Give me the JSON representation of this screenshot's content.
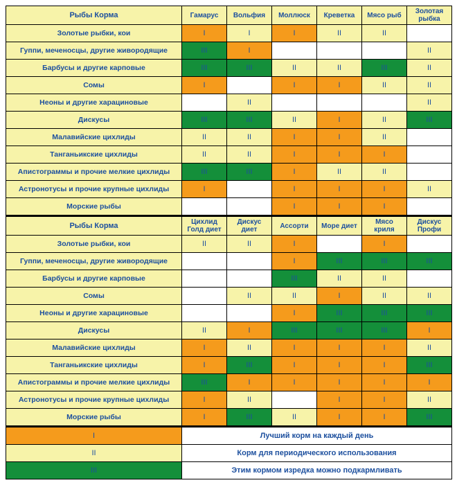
{
  "colors": {
    "orange": "#f59b1c",
    "yellow": "#f7f3a9",
    "green": "#148f3a",
    "white": "#ffffff",
    "text": "#1c4f9e",
    "border": "#000000"
  },
  "corner_label": "Рыбы     Корма",
  "tables": [
    {
      "foods": [
        "Гамарус",
        "Вольфия",
        "Моллюск",
        "Креветка",
        "Мясо рыб",
        "Золотая рыбка"
      ],
      "rows": [
        {
          "fish": "Золотые рыбки, кои",
          "cells": [
            [
              "I",
              "orange"
            ],
            [
              "I",
              "yellow"
            ],
            [
              "I",
              "orange"
            ],
            [
              "II",
              "yellow"
            ],
            [
              "II",
              "yellow"
            ],
            [
              "",
              "white"
            ]
          ]
        },
        {
          "fish": "Гуппи, меченосцы, другие живородящие",
          "cells": [
            [
              "III",
              "green"
            ],
            [
              "I",
              "orange"
            ],
            [
              "",
              "white"
            ],
            [
              "",
              "white"
            ],
            [
              "",
              "white"
            ],
            [
              "II",
              "yellow"
            ]
          ]
        },
        {
          "fish": "Барбусы  и другие карповые",
          "cells": [
            [
              "III",
              "green"
            ],
            [
              "III",
              "green"
            ],
            [
              "II",
              "yellow"
            ],
            [
              "II",
              "yellow"
            ],
            [
              "III",
              "green"
            ],
            [
              "II",
              "yellow"
            ]
          ]
        },
        {
          "fish": "Сомы",
          "cells": [
            [
              "I",
              "orange"
            ],
            [
              "",
              "white"
            ],
            [
              "I",
              "orange"
            ],
            [
              "I",
              "orange"
            ],
            [
              "II",
              "yellow"
            ],
            [
              "II",
              "yellow"
            ]
          ]
        },
        {
          "fish": "Неоны и другие харациновые",
          "cells": [
            [
              "",
              "white"
            ],
            [
              "II",
              "yellow"
            ],
            [
              "",
              "white"
            ],
            [
              "",
              "white"
            ],
            [
              "",
              "white"
            ],
            [
              "II",
              "yellow"
            ]
          ]
        },
        {
          "fish": "Дискусы",
          "cells": [
            [
              "III",
              "green"
            ],
            [
              "III",
              "green"
            ],
            [
              "II",
              "yellow"
            ],
            [
              "I",
              "orange"
            ],
            [
              "II",
              "yellow"
            ],
            [
              "III",
              "green"
            ]
          ]
        },
        {
          "fish": "Малавийские цихлиды",
          "cells": [
            [
              "II",
              "yellow"
            ],
            [
              "II",
              "yellow"
            ],
            [
              "I",
              "orange"
            ],
            [
              "I",
              "orange"
            ],
            [
              "II",
              "yellow"
            ],
            [
              "",
              "white"
            ]
          ]
        },
        {
          "fish": "Танганьикские цихлиды",
          "cells": [
            [
              "II",
              "yellow"
            ],
            [
              "II",
              "yellow"
            ],
            [
              "I",
              "orange"
            ],
            [
              "I",
              "orange"
            ],
            [
              "I",
              "orange"
            ],
            [
              "",
              "white"
            ]
          ]
        },
        {
          "fish": "Апистограммы и прочие мелкие цихлиды",
          "cells": [
            [
              "III",
              "green"
            ],
            [
              "III",
              "green"
            ],
            [
              "I",
              "orange"
            ],
            [
              "II",
              "yellow"
            ],
            [
              "II",
              "yellow"
            ],
            [
              "",
              "white"
            ]
          ]
        },
        {
          "fish": "Астронотусы и прочие крупные цихлиды",
          "cells": [
            [
              "I",
              "orange"
            ],
            [
              "",
              "white"
            ],
            [
              "I",
              "orange"
            ],
            [
              "I",
              "orange"
            ],
            [
              "I",
              "orange"
            ],
            [
              "II",
              "yellow"
            ]
          ]
        },
        {
          "fish": "Морские рыбы",
          "cells": [
            [
              "",
              "white"
            ],
            [
              "",
              "white"
            ],
            [
              "I",
              "orange"
            ],
            [
              "I",
              "orange"
            ],
            [
              "I",
              "orange"
            ],
            [
              "",
              "white"
            ]
          ]
        }
      ]
    },
    {
      "foods": [
        "Цихлид Голд диет",
        "Дискус диет",
        "Ассорти",
        "Море диет",
        "Мясо криля",
        "Дискус Профи"
      ],
      "rows": [
        {
          "fish": "Золотые рыбки, кои",
          "cells": [
            [
              "II",
              "yellow"
            ],
            [
              "II",
              "yellow"
            ],
            [
              "I",
              "orange"
            ],
            [
              "",
              "white"
            ],
            [
              "I",
              "orange"
            ],
            [
              "",
              "white"
            ]
          ]
        },
        {
          "fish": "Гуппи, меченосцы, другие живородящие",
          "cells": [
            [
              "",
              "white"
            ],
            [
              "",
              "white"
            ],
            [
              "I",
              "orange"
            ],
            [
              "III",
              "green"
            ],
            [
              "III",
              "green"
            ],
            [
              "III",
              "green"
            ]
          ]
        },
        {
          "fish": "Барбусы  и другие карповые",
          "cells": [
            [
              "",
              "white"
            ],
            [
              "",
              "white"
            ],
            [
              "III",
              "green"
            ],
            [
              "II",
              "yellow"
            ],
            [
              "II",
              "yellow"
            ],
            [
              "",
              "white"
            ]
          ]
        },
        {
          "fish": "Сомы",
          "cells": [
            [
              "",
              "white"
            ],
            [
              "II",
              "yellow"
            ],
            [
              "II",
              "yellow"
            ],
            [
              "I",
              "orange"
            ],
            [
              "II",
              "yellow"
            ],
            [
              "II",
              "yellow"
            ]
          ]
        },
        {
          "fish": "Неоны и другие харациновые",
          "cells": [
            [
              "",
              "white"
            ],
            [
              "",
              "white"
            ],
            [
              "I",
              "orange"
            ],
            [
              "III",
              "green"
            ],
            [
              "III",
              "green"
            ],
            [
              "III",
              "green"
            ]
          ]
        },
        {
          "fish": "Дискусы",
          "cells": [
            [
              "II",
              "yellow"
            ],
            [
              "I",
              "orange"
            ],
            [
              "III",
              "green"
            ],
            [
              "III",
              "green"
            ],
            [
              "III",
              "green"
            ],
            [
              "I",
              "orange"
            ]
          ]
        },
        {
          "fish": "Малавийские цихлиды",
          "cells": [
            [
              "I",
              "orange"
            ],
            [
              "II",
              "yellow"
            ],
            [
              "I",
              "orange"
            ],
            [
              "I",
              "orange"
            ],
            [
              "I",
              "orange"
            ],
            [
              "II",
              "yellow"
            ]
          ]
        },
        {
          "fish": "Танганьикские цихлиды",
          "cells": [
            [
              "I",
              "orange"
            ],
            [
              "III",
              "green"
            ],
            [
              "I",
              "orange"
            ],
            [
              "I",
              "orange"
            ],
            [
              "I",
              "orange"
            ],
            [
              "III",
              "green"
            ]
          ]
        },
        {
          "fish": "Апистограммы и прочие мелкие цихлиды",
          "cells": [
            [
              "III",
              "green"
            ],
            [
              "I",
              "orange"
            ],
            [
              "I",
              "orange"
            ],
            [
              "I",
              "orange"
            ],
            [
              "I",
              "orange"
            ],
            [
              "I",
              "orange"
            ]
          ]
        },
        {
          "fish": "Астронотусы и прочие крупные цихлиды",
          "cells": [
            [
              "I",
              "orange"
            ],
            [
              "II",
              "yellow"
            ],
            [
              "",
              "white"
            ],
            [
              "I",
              "orange"
            ],
            [
              "I",
              "orange"
            ],
            [
              "II",
              "yellow"
            ]
          ]
        },
        {
          "fish": "Морские рыбы",
          "cells": [
            [
              "I",
              "orange"
            ],
            [
              "III",
              "green"
            ],
            [
              "II",
              "yellow"
            ],
            [
              "I",
              "orange"
            ],
            [
              "I",
              "orange"
            ],
            [
              "III",
              "green"
            ]
          ]
        }
      ]
    }
  ],
  "legend": [
    {
      "mark": "I",
      "color": "orange",
      "text": "Лучший корм на каждый день"
    },
    {
      "mark": "II",
      "color": "yellow",
      "text": "Корм для периодического использования"
    },
    {
      "mark": "III",
      "color": "green",
      "text": "Этим кормом изредка можно подкармливать"
    }
  ]
}
